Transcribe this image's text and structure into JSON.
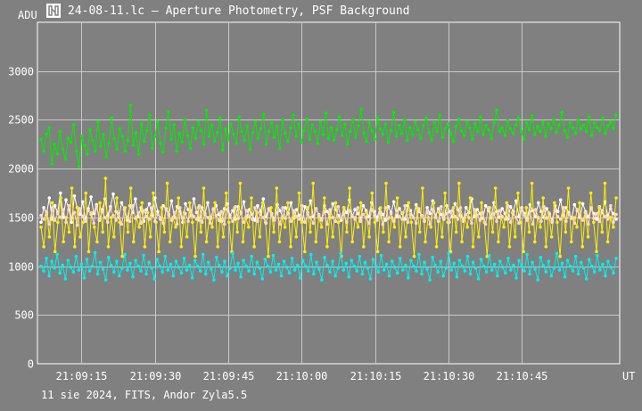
{
  "window": {
    "title": "24-08-11.lc – Aperture Photometry, PSF Background",
    "icon": "app-logo-icon"
  },
  "footer": "11 sie 2024, FITS, Andor Zyla5.5",
  "chart_data": {
    "type": "line",
    "title": "24-08-11.lc – Aperture Photometry, PSF Background",
    "xlabel": "UT",
    "ylabel": "ADU",
    "ylim": [
      0,
      3500
    ],
    "yticks": [
      0,
      500,
      1000,
      1500,
      2000,
      2500,
      3000
    ],
    "xlim": [
      "21:09:06",
      "21:11:05"
    ],
    "xticks": [
      "21:09:15",
      "21:09:30",
      "21:09:45",
      "21:10:00",
      "21:10:15",
      "21:10:30",
      "21:10:45"
    ],
    "grid": true,
    "legend": "none",
    "series": [
      {
        "color": "#00ee00",
        "values": [
          2300,
          2180,
          2350,
          2420,
          2050,
          2250,
          2150,
          2380,
          2200,
          2100,
          2310,
          2270,
          2450,
          2180,
          2020,
          2330,
          2240,
          2150,
          2400,
          2290,
          2180,
          2480,
          2230,
          2350,
          2120,
          2260,
          2520,
          2310,
          2200,
          2410,
          2330,
          2180,
          2290,
          2650,
          2240,
          2370,
          2150,
          2460,
          2280,
          2390,
          2550,
          2210,
          2330,
          2480,
          2260,
          2170,
          2420,
          2580,
          2300,
          2450,
          2180,
          2360,
          2270,
          2500,
          2340,
          2210,
          2420,
          2310,
          2480,
          2390,
          2250,
          2600,
          2330,
          2450,
          2280,
          2370,
          2520,
          2190,
          2410,
          2300,
          2460,
          2350,
          2260,
          2530,
          2380,
          2290,
          2440,
          2200,
          2370,
          2480,
          2310,
          2410,
          2560,
          2250,
          2380,
          2470,
          2320,
          2430,
          2210,
          2500,
          2360,
          2280,
          2420,
          2550,
          2330,
          2460,
          2270,
          2390,
          2510,
          2300,
          2450,
          2380,
          2260,
          2480,
          2350,
          2570,
          2310,
          2420,
          2290,
          2400,
          2530,
          2340,
          2460,
          2250,
          2380,
          2500,
          2320,
          2440,
          2610,
          2360,
          2280,
          2470,
          2390,
          2300,
          2520,
          2410,
          2350,
          2460,
          2270,
          2390,
          2580,
          2330,
          2440,
          2360,
          2500,
          2290,
          2420,
          2350,
          2480,
          2400,
          2310,
          2440,
          2520,
          2370,
          2290,
          2470,
          2380,
          2550,
          2320,
          2410,
          2460,
          2360,
          2280,
          2430,
          2510,
          2390,
          2340,
          2480,
          2420,
          2300,
          2460,
          2380,
          2530,
          2350,
          2440,
          2400,
          2310,
          2470,
          2600,
          2380,
          2420,
          2340,
          2490,
          2410,
          2360,
          2450,
          2520,
          2380,
          2300,
          2470,
          2400,
          2540,
          2350,
          2430,
          2380,
          2480,
          2330,
          2460,
          2410,
          2500,
          2370,
          2440,
          2580,
          2390,
          2320,
          2470,
          2420,
          2360,
          2500,
          2410,
          2450,
          2380,
          2530,
          2340,
          2470,
          2420,
          2390,
          2520,
          2360,
          2440,
          2480,
          2410,
          2550
        ]
      },
      {
        "color": "#ffffff",
        "values": [
          1450,
          1600,
          1530,
          1700,
          1480,
          1620,
          1550,
          1750,
          1500,
          1680,
          1580,
          1450,
          1720,
          1600,
          1530,
          1660,
          1480,
          1590,
          1710,
          1540,
          1630,
          1470,
          1580,
          1690,
          1520,
          1610,
          1740,
          1560,
          1500,
          1650,
          1580,
          1470,
          1620,
          1550,
          1690,
          1510,
          1600,
          1460,
          1580,
          1640,
          1520,
          1700,
          1560,
          1480,
          1620,
          1590,
          1530,
          1670,
          1500,
          1610,
          1560,
          1450,
          1640,
          1580,
          1520,
          1690,
          1550,
          1470,
          1600,
          1540,
          1650,
          1490,
          1580,
          1620,
          1530,
          1460,
          1590,
          1640,
          1520,
          1570,
          1480,
          1610,
          1550,
          1660,
          1500,
          1580,
          1530,
          1470,
          1620,
          1560,
          1690,
          1510,
          1590,
          1540,
          1480,
          1630,
          1570,
          1500,
          1600,
          1540,
          1650,
          1490,
          1580,
          1520,
          1460,
          1610,
          1550,
          1670,
          1510,
          1590,
          1530,
          1480,
          1620,
          1560,
          1500,
          1640,
          1580,
          1520,
          1470,
          1600,
          1550,
          1680,
          1510,
          1580,
          1540,
          1490,
          1620,
          1570,
          1510,
          1650,
          1560,
          1500,
          1590,
          1530,
          1470,
          1610,
          1550,
          1660,
          1510,
          1590,
          1540,
          1480,
          1620,
          1570,
          1500,
          1630,
          1560,
          1520,
          1460,
          1600,
          1540,
          1670,
          1510,
          1590,
          1530,
          1480,
          1620,
          1560,
          1510,
          1640,
          1580,
          1520,
          1470,
          1600,
          1550,
          1690,
          1510,
          1580,
          1540,
          1490,
          1620,
          1570,
          1500,
          1650,
          1560,
          1500,
          1590,
          1540,
          1480,
          1610,
          1560,
          1670,
          1510,
          1600,
          1540,
          1490,
          1630,
          1570,
          1510,
          1650,
          1560,
          1500,
          1590,
          1530,
          1470,
          1620,
          1560,
          1680,
          1520,
          1600,
          1550,
          1490,
          1630,
          1570,
          1500,
          1640,
          1560,
          1510,
          1590,
          1540,
          1480,
          1610,
          1550,
          1660,
          1520,
          1590,
          1540,
          1480
        ]
      },
      {
        "color": "#ffee00",
        "values": [
          1400,
          1200,
          1550,
          1300,
          1650,
          1150,
          1450,
          1700,
          1250,
          1500,
          1350,
          1800,
          1200,
          1600,
          1300,
          1450,
          1750,
          1150,
          1550,
          1400,
          1250,
          1650,
          1350,
          1900,
          1200,
          1500,
          1300,
          1700,
          1450,
          1100,
          1600,
          1350,
          1800,
          1250,
          1500,
          1400,
          1650,
          1200,
          1550,
          1300,
          1750,
          1450,
          1150,
          1600,
          1350,
          1850,
          1250,
          1500,
          1400,
          1700,
          1200,
          1550,
          1300,
          1650,
          1450,
          1100,
          1600,
          1350,
          1800,
          1250,
          1500,
          1400,
          1650,
          1200,
          1550,
          1300,
          1750,
          1450,
          1150,
          1600,
          1350,
          1850,
          1250,
          1500,
          1400,
          1700,
          1200,
          1550,
          1300,
          1650,
          1450,
          1100,
          1600,
          1350,
          1800,
          1250,
          1500,
          1400,
          1650,
          1200,
          1550,
          1300,
          1750,
          1450,
          1150,
          1600,
          1350,
          1850,
          1250,
          1500,
          1400,
          1700,
          1200,
          1550,
          1300,
          1650,
          1450,
          1100,
          1600,
          1350,
          1800,
          1250,
          1500,
          1400,
          1650,
          1200,
          1550,
          1300,
          1750,
          1450,
          1150,
          1600,
          1350,
          1850,
          1250,
          1500,
          1400,
          1700,
          1200,
          1550,
          1300,
          1650,
          1450,
          1100,
          1600,
          1350,
          1800,
          1250,
          1500,
          1400,
          1650,
          1200,
          1550,
          1300,
          1750,
          1450,
          1150,
          1600,
          1350,
          1850,
          1250,
          1500,
          1400,
          1700,
          1200,
          1550,
          1300,
          1650,
          1450,
          1100,
          1600,
          1350,
          1800,
          1250,
          1500,
          1400,
          1650,
          1200,
          1550,
          1300,
          1750,
          1450,
          1150,
          1600,
          1350,
          1850,
          1250,
          1500,
          1400,
          1700,
          1200,
          1550,
          1300,
          1650,
          1450,
          1100,
          1600,
          1350,
          1800,
          1250,
          1500,
          1400,
          1650,
          1200,
          1550,
          1300,
          1750,
          1450,
          1150,
          1600,
          1350,
          1850,
          1250,
          1500,
          1400,
          1700
        ]
      },
      {
        "color": "#ffd8c8",
        "values": [
          1520,
          1480,
          1560,
          1430,
          1600,
          1470,
          1540,
          1500,
          1580,
          1450,
          1620,
          1490,
          1550,
          1420,
          1590,
          1510,
          1460,
          1570,
          1530,
          1440,
          1610,
          1480,
          1560,
          1500,
          1450,
          1590,
          1520,
          1470,
          1540,
          1430,
          1580,
          1500,
          1460,
          1620,
          1490,
          1550,
          1440,
          1570,
          1510,
          1480,
          1600,
          1460,
          1530,
          1500,
          1440,
          1580,
          1520,
          1470,
          1550,
          1430,
          1600,
          1490,
          1540,
          1460,
          1570,
          1510,
          1480,
          1620,
          1450,
          1530,
          1500,
          1440,
          1590,
          1520,
          1470,
          1560,
          1430,
          1580,
          1500,
          1460,
          1610,
          1490,
          1540,
          1450,
          1570,
          1510,
          1480,
          1600,
          1460,
          1530,
          1500,
          1440,
          1580,
          1520,
          1470,
          1550,
          1430,
          1600,
          1490,
          1540,
          1460,
          1570,
          1510,
          1480,
          1620,
          1450,
          1530,
          1500,
          1440,
          1590,
          1520,
          1470,
          1560,
          1430,
          1580,
          1500,
          1460,
          1610,
          1490,
          1540,
          1450,
          1570,
          1510,
          1480,
          1600,
          1460,
          1530,
          1500,
          1440,
          1580,
          1520,
          1470,
          1550,
          1430,
          1600,
          1490,
          1540,
          1460,
          1570,
          1510,
          1480,
          1620,
          1450,
          1530,
          1500,
          1440,
          1590,
          1520,
          1470,
          1560,
          1430,
          1580,
          1500,
          1460,
          1610,
          1490,
          1540,
          1450,
          1570,
          1510,
          1480,
          1600,
          1460,
          1530,
          1500,
          1440,
          1580,
          1520,
          1470,
          1550,
          1430,
          1600,
          1490,
          1540,
          1460,
          1570,
          1510,
          1480,
          1620,
          1450,
          1530,
          1500,
          1440,
          1590,
          1520,
          1470,
          1560,
          1430,
          1580,
          1500,
          1460,
          1610,
          1490,
          1540,
          1450,
          1570,
          1510,
          1480,
          1600,
          1460,
          1530,
          1500,
          1440,
          1580,
          1520,
          1470,
          1550,
          1430,
          1600,
          1490,
          1540,
          1460,
          1570,
          1510,
          1480,
          1620,
          1450,
          1530
        ]
      },
      {
        "color": "#00f0f0",
        "values": [
          1000,
          950,
          1080,
          900,
          1050,
          980,
          1120,
          930,
          1010,
          870,
          1060,
          990,
          940,
          1100,
          960,
          1020,
          880,
          1070,
          950,
          1000,
          1140,
          920,
          1040,
          970,
          860,
          1090,
          1010,
          940,
          1050,
          900,
          980,
          1120,
          960,
          1030,
          890,
          1060,
          1000,
          950,
          1110,
          920,
          1040,
          980,
          870,
          1070,
          1000,
          940,
          1100,
          960,
          1020,
          900,
          1050,
          990,
          930,
          1080,
          960,
          1010,
          880,
          1060,
          1000,
          950,
          1120,
          920,
          1040,
          970,
          860,
          1090,
          1010,
          940,
          1050,
          900,
          980,
          1130,
          960,
          1030,
          890,
          1060,
          1000,
          950,
          1100,
          920,
          1040,
          980,
          870,
          1070,
          1000,
          940,
          1110,
          960,
          1020,
          900,
          1050,
          990,
          930,
          1080,
          960,
          1010,
          880,
          1060,
          1000,
          950,
          1120,
          920,
          1040,
          970,
          860,
          1090,
          1010,
          940,
          1050,
          900,
          980,
          1130,
          960,
          1030,
          890,
          1060,
          1000,
          950,
          1100,
          920,
          1040,
          980,
          870,
          1070,
          1000,
          940,
          1110,
          960,
          1020,
          900,
          1050,
          990,
          930,
          1080,
          960,
          1010,
          880,
          1060,
          1000,
          950,
          1120,
          920,
          1040,
          970,
          860,
          1090,
          1010,
          940,
          1050,
          900,
          980,
          1130,
          960,
          1030,
          890,
          1060,
          1000,
          950,
          1100,
          920,
          1040,
          980,
          870,
          1070,
          1000,
          940,
          1110,
          960,
          1020,
          900,
          1050,
          990,
          930,
          1080,
          960,
          1010,
          880,
          1060,
          1000,
          950,
          1120,
          920,
          1040,
          970,
          860,
          1090,
          1010,
          940,
          1050,
          900,
          980,
          1130,
          960,
          1030,
          890,
          1060,
          1000,
          950,
          1100,
          920,
          1040,
          980,
          870,
          1070,
          1000,
          940,
          1110,
          960,
          1020,
          900,
          1050,
          990,
          930,
          1080
        ]
      }
    ]
  }
}
